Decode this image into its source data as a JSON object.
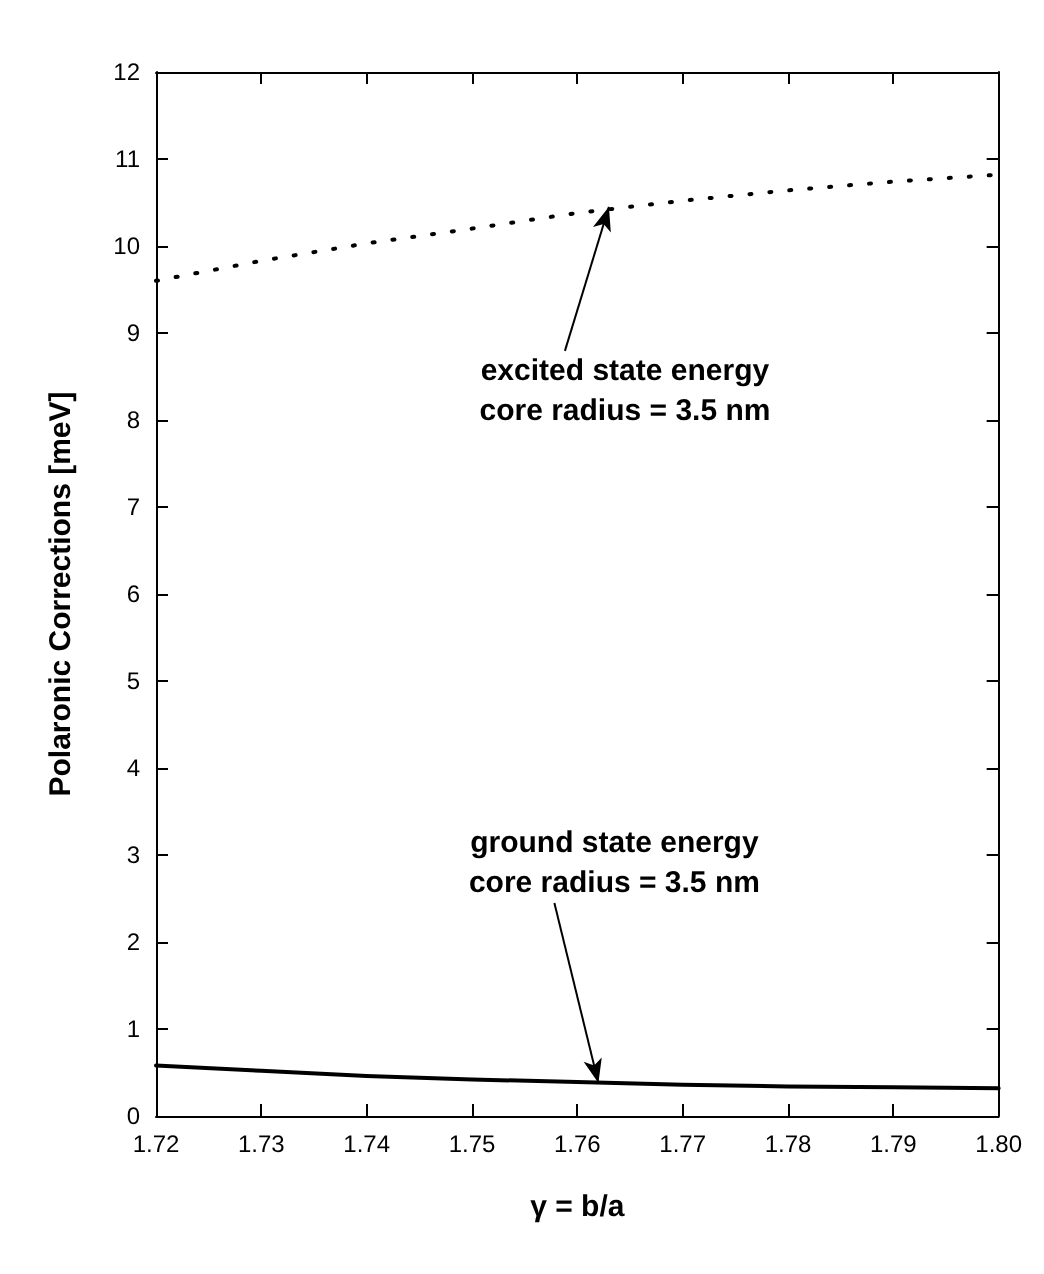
{
  "chart_data": {
    "type": "line",
    "xlabel": "γ = b/a",
    "ylabel": "Polaronic Corrections [meV]",
    "xlim": [
      1.72,
      1.8
    ],
    "xticks": [
      {
        "value": 1.72,
        "label": "1.72"
      },
      1.73,
      1.74,
      1.75,
      1.76,
      1.77,
      1.78,
      1.79,
      {
        "value": 1.8,
        "label": "1.80"
      }
    ],
    "ylim": [
      0,
      12
    ],
    "yticks": [
      0,
      1,
      2,
      3,
      4,
      5,
      6,
      7,
      8,
      9,
      10,
      11,
      12
    ],
    "grid": false,
    "marker": "none",
    "series": [
      {
        "color": "#000000",
        "line_style": "dotted",
        "x": [
          1.72,
          1.73,
          1.74,
          1.75,
          1.76,
          1.77,
          1.78,
          1.79,
          1.8
        ],
        "values": [
          9.6,
          9.83,
          10.03,
          10.2,
          10.38,
          10.52,
          10.64,
          10.74,
          10.82
        ]
      },
      {
        "color": "#000000",
        "line_style": "solid",
        "x": [
          1.72,
          1.73,
          1.74,
          1.75,
          1.76,
          1.77,
          1.78,
          1.79,
          1.8
        ],
        "values": [
          0.58,
          0.52,
          0.46,
          0.42,
          0.39,
          0.36,
          0.34,
          0.33,
          0.32
        ]
      }
    ],
    "annotations": [
      {
        "text": "excited state energy\ncore radius = 3.5 nm",
        "x": 1.763,
        "y": 10.45
      },
      {
        "text": "ground state energy\ncore radius = 3.5 nm",
        "x": 1.762,
        "y": 0.38
      }
    ]
  }
}
